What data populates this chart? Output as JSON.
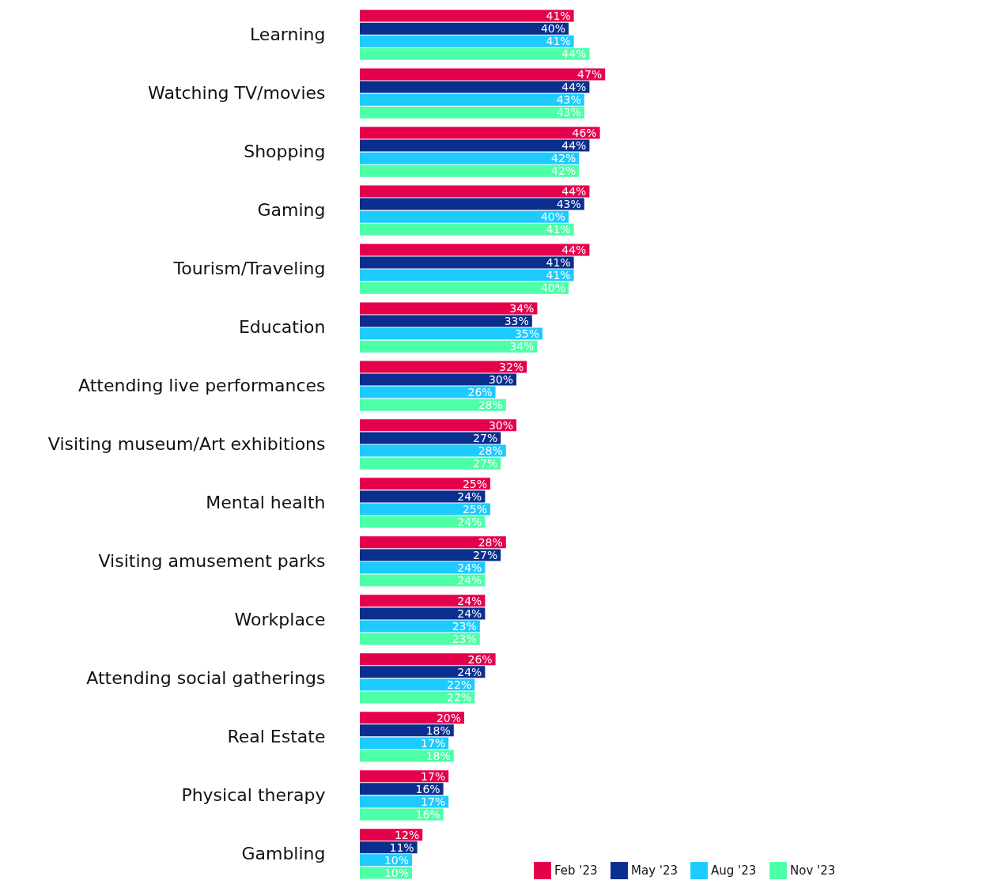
{
  "chart_data": {
    "type": "bar",
    "orientation": "horizontal",
    "legend": "bottom right",
    "categories": [
      "Learning",
      "Watching TV/movies",
      "Shopping",
      "Gaming",
      "Tourism/Traveling",
      "Education",
      "Attending live performances",
      "Visiting museum/Art exhibitions",
      "Mental health",
      "Visiting amusement parks",
      "Workplace",
      "Attending social gatherings",
      "Real Estate",
      "Physical therapy",
      "Gambling"
    ],
    "series": [
      {
        "name": "Feb '23",
        "color": "#e5004c",
        "values": [
          41,
          47,
          46,
          44,
          44,
          34,
          32,
          30,
          25,
          28,
          24,
          26,
          20,
          17,
          12
        ],
        "value_labels": [
          "41%",
          "47%",
          "46%",
          "44%",
          "44%",
          "34%",
          "32%",
          "30%",
          "25%",
          "28%",
          "24%",
          "26%",
          "20%",
          "17%",
          "12%"
        ]
      },
      {
        "name": "May '23",
        "color": "#0a2f8f",
        "values": [
          40,
          44,
          44,
          43,
          41,
          33,
          30,
          27,
          24,
          27,
          24,
          24,
          18,
          16,
          11
        ],
        "value_labels": [
          "40%",
          "44%",
          "44%",
          "43%",
          "41%",
          "33%",
          "30%",
          "27%",
          "24%",
          "27%",
          "24%",
          "24%",
          "18%",
          "16%",
          "11%"
        ]
      },
      {
        "name": "Aug '23",
        "color": "#1ecbff",
        "values": [
          41,
          43,
          42,
          40,
          41,
          35,
          26,
          28,
          25,
          24,
          23,
          22,
          17,
          17,
          10
        ],
        "value_labels": [
          "41%",
          "43%",
          "42%",
          "40%",
          "41%",
          "35%",
          "26%",
          "28%",
          "25%",
          "24%",
          "23%",
          "22%",
          "17%",
          "17%",
          "10%"
        ]
      },
      {
        "name": "Nov '23",
        "color": "#4dffa6",
        "values": [
          44,
          43,
          42,
          41,
          40,
          34,
          28,
          27,
          24,
          24,
          23,
          22,
          18,
          16,
          10
        ],
        "value_labels": [
          "44%",
          "43%",
          "42%",
          "41%",
          "40%",
          "34%",
          "28%",
          "27%",
          "24%",
          "24%",
          "23%",
          "22%",
          "18%",
          "16%",
          "10%"
        ]
      }
    ]
  }
}
